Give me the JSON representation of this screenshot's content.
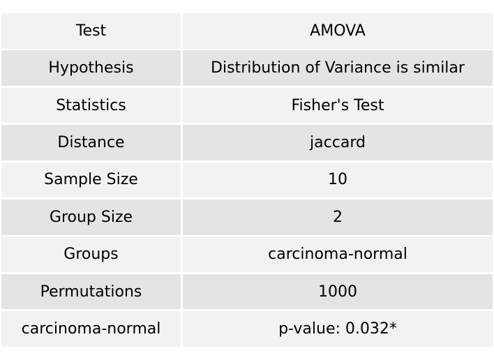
{
  "table": {
    "rows": [
      [
        "Test",
        "AMOVA"
      ],
      [
        "Hypothesis",
        "Distribution of Variance is similar"
      ],
      [
        "Statistics",
        "Fisher's Test"
      ],
      [
        "Distance",
        "jaccard"
      ],
      [
        "Sample Size",
        "10"
      ],
      [
        "Group Size",
        "2"
      ],
      [
        "Groups",
        "carcinoma-normal"
      ],
      [
        "Permutations",
        "1000"
      ],
      [
        "carcinoma-normal",
        "p-value: 0.032*"
      ]
    ]
  }
}
